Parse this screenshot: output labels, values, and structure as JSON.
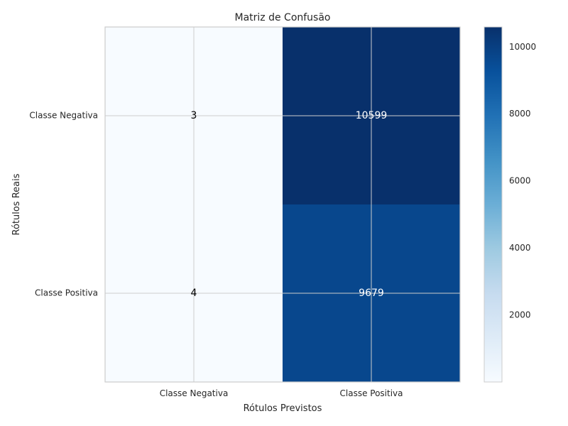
{
  "chart_data": {
    "type": "heatmap",
    "title": "Matriz de Confusão",
    "xlabel": "Rótulos Previstos",
    "ylabel": "Rótulos Reais",
    "x_categories": [
      "Classe Negativa",
      "Classe Positiva"
    ],
    "y_categories": [
      "Classe Negativa",
      "Classe Positiva"
    ],
    "values": [
      [
        3,
        10599
      ],
      [
        4,
        9679
      ]
    ],
    "colormap": "Blues",
    "colorbar": {
      "min": 3,
      "max": 10599,
      "ticks": [
        "2000",
        "4000",
        "6000",
        "8000",
        "10000"
      ]
    },
    "grid": true
  }
}
